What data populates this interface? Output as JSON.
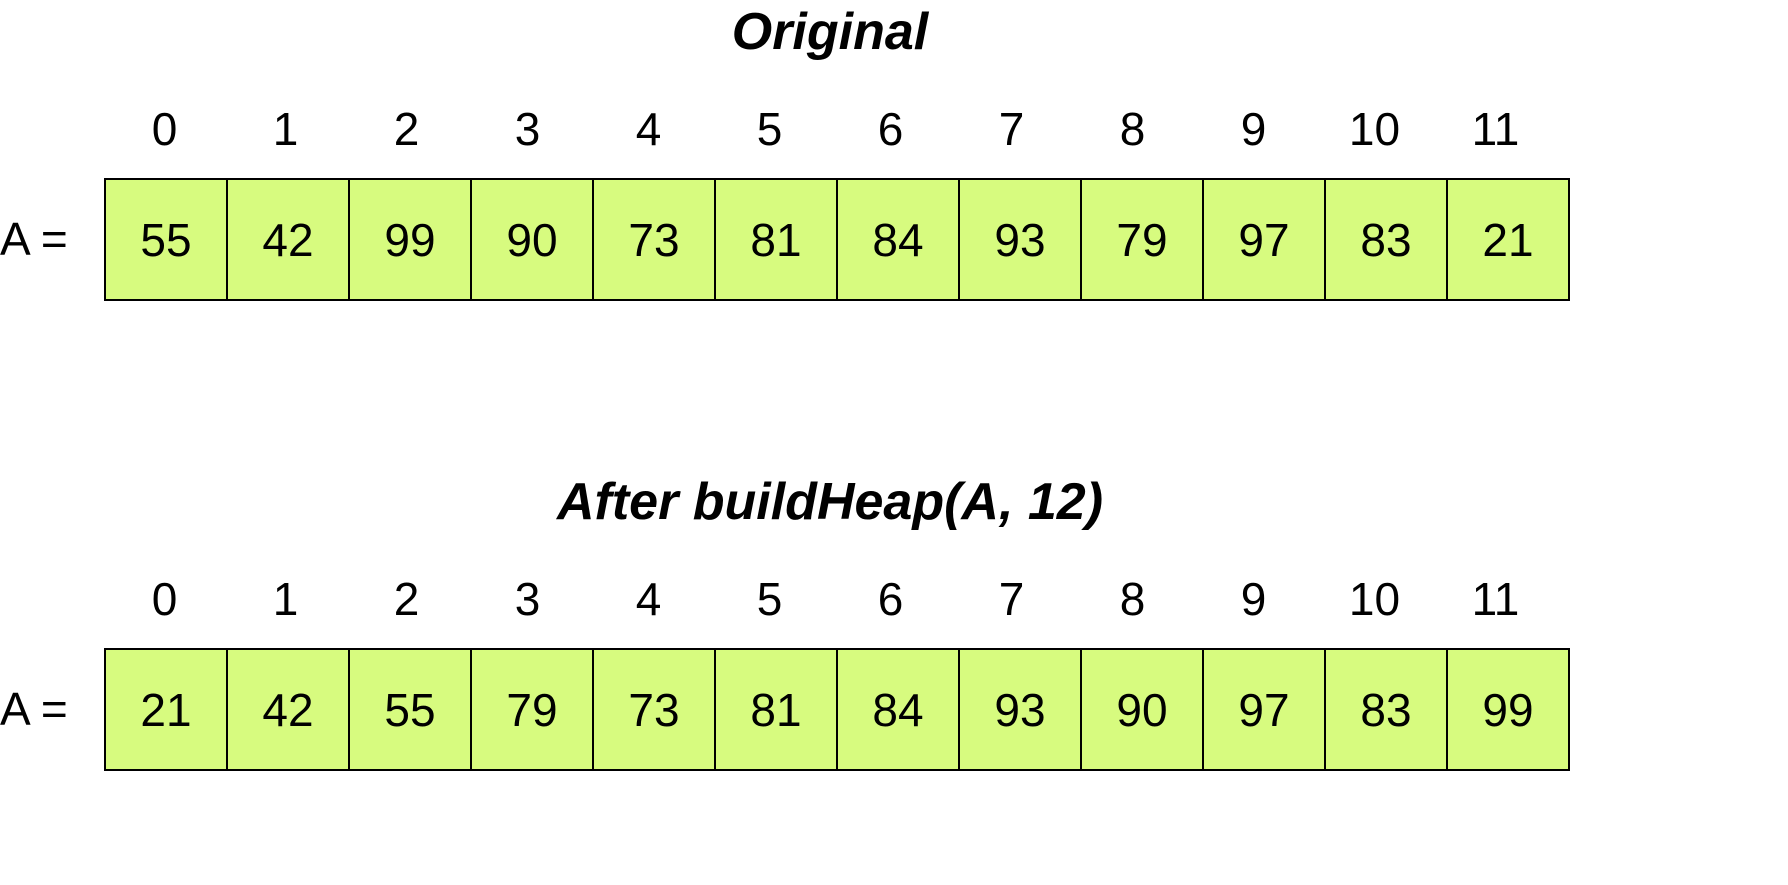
{
  "cell_color": "#d7fb7f",
  "sections": [
    {
      "title": "Original",
      "array_label": "A =",
      "indices": [
        "0",
        "1",
        "2",
        "3",
        "4",
        "5",
        "6",
        "7",
        "8",
        "9",
        "10",
        "11"
      ],
      "values": [
        "55",
        "42",
        "99",
        "90",
        "73",
        "81",
        "84",
        "93",
        "79",
        "97",
        "83",
        "21"
      ]
    },
    {
      "title": "After buildHeap(A, 12)",
      "array_label": "A =",
      "indices": [
        "0",
        "1",
        "2",
        "3",
        "4",
        "5",
        "6",
        "7",
        "8",
        "9",
        "10",
        "11"
      ],
      "values": [
        "21",
        "42",
        "55",
        "79",
        "73",
        "81",
        "84",
        "93",
        "90",
        "97",
        "83",
        "99"
      ]
    }
  ]
}
